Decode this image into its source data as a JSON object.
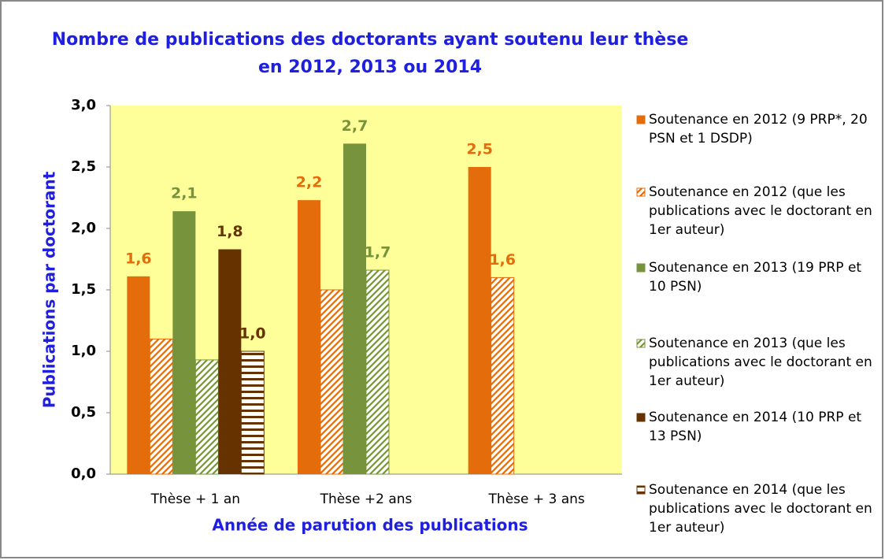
{
  "chart_data": {
    "type": "bar",
    "title": "Nombre de publications des doctorants ayant soutenu leur thèse en 2012, 2013 ou 2014",
    "x_label": "Année de parution des publications",
    "y_label": "Publications par doctorant",
    "categories": [
      "Thèse + 1 an",
      "Thèse +2 ans",
      "Thèse + 3 ans"
    ],
    "series": [
      {
        "name": "Soutenance en 2012 (9 PRP*, 20 PSN et 1 DSDP)",
        "color": "#e46c0a",
        "pattern": "solid",
        "values": [
          1.61,
          2.23,
          2.5
        ],
        "value_labels": [
          "1,6",
          "2,2",
          "2,5"
        ]
      },
      {
        "name": "Soutenance en 2012 (que les publications avec le doctorant en 1er auteur)",
        "color": "#e46c0a",
        "pattern": "diagonal",
        "values": [
          1.1,
          1.5,
          1.6
        ],
        "value_labels": [
          null,
          null,
          "1,6"
        ]
      },
      {
        "name": "Soutenance en 2013 (19 PRP et 10 PSN)",
        "color": "#77933c",
        "pattern": "solid",
        "values": [
          2.14,
          2.69,
          null
        ],
        "value_labels": [
          "2,1",
          "2,7",
          null
        ]
      },
      {
        "name": "Soutenance en 2013 (que les publications avec le doctorant en 1er auteur)",
        "color": "#77933c",
        "pattern": "diagonal",
        "values": [
          0.93,
          1.66,
          null
        ],
        "value_labels": [
          null,
          "1,7",
          null
        ]
      },
      {
        "name": "Soutenance en 2014 (10 PRP et 13 PSN)",
        "color": "#663300",
        "pattern": "solid",
        "values": [
          1.83,
          null,
          null
        ],
        "value_labels": [
          "1,8",
          null,
          null
        ]
      },
      {
        "name": "Soutenance en 2014 (que les publications avec le doctorant en 1er auteur)",
        "color": "#663300",
        "pattern": "horizontal",
        "values": [
          1.0,
          null,
          null
        ],
        "value_labels": [
          "1,0",
          null,
          null
        ]
      }
    ],
    "ylim": [
      0,
      3
    ],
    "yticks": [
      {
        "value": 0,
        "label": "0,0"
      },
      {
        "value": 0.5,
        "label": "0,5"
      },
      {
        "value": 1,
        "label": "1,0"
      },
      {
        "value": 1.5,
        "label": "1,5"
      },
      {
        "value": 2,
        "label": "2,0"
      },
      {
        "value": 2.5,
        "label": "2,5"
      },
      {
        "value": 3,
        "label": "3,0"
      }
    ],
    "plot_background": "#ffff99",
    "legend": "right"
  }
}
